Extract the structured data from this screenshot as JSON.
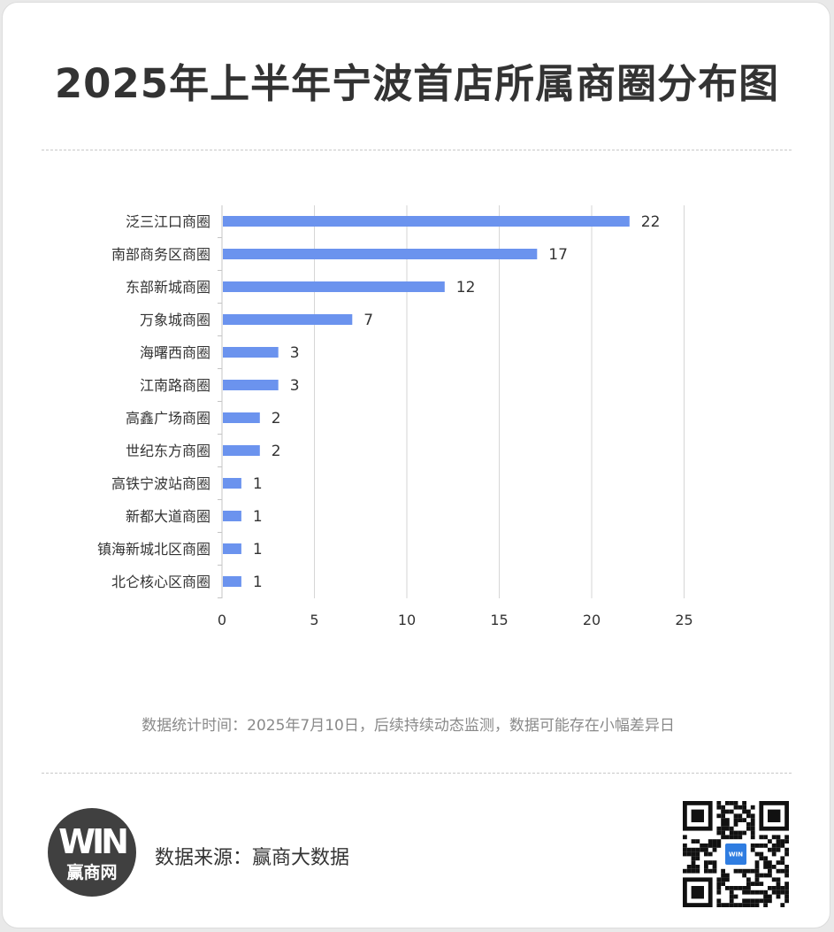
{
  "title": "2025年上半年宁波首店所属商圈分布图",
  "note": "数据统计时间：2025年7月10日，后续持续动态监测，数据可能存在小幅差异日",
  "source_label": "数据来源：赢商大数据",
  "logo": {
    "mark": "WIN",
    "text": "赢商网"
  },
  "qr_badge": "WIN",
  "colors": {
    "bar": "#6b93ee",
    "grid": "#d6d6d6",
    "text": "#333333"
  },
  "chart_data": {
    "type": "bar",
    "orientation": "horizontal",
    "title": "2025年上半年宁波首店所属商圈分布图",
    "xlabel": "",
    "ylabel": "",
    "categories": [
      "泛三江口商圈",
      "南部商务区商圈",
      "东部新城商圈",
      "万象城商圈",
      "海曙西商圈",
      "江南路商圈",
      "高鑫广场商圈",
      "世纪东方商圈",
      "高铁宁波站商圈",
      "新都大道商圈",
      "镇海新城北区商圈",
      "北仑核心区商圈"
    ],
    "values": [
      22,
      17,
      12,
      7,
      3,
      3,
      2,
      2,
      1,
      1,
      1,
      1
    ],
    "xlim": [
      0,
      25
    ],
    "xticks": [
      "0",
      "5",
      "10",
      "15",
      "20",
      "25"
    ],
    "grid": "vertical",
    "legend": "none"
  }
}
